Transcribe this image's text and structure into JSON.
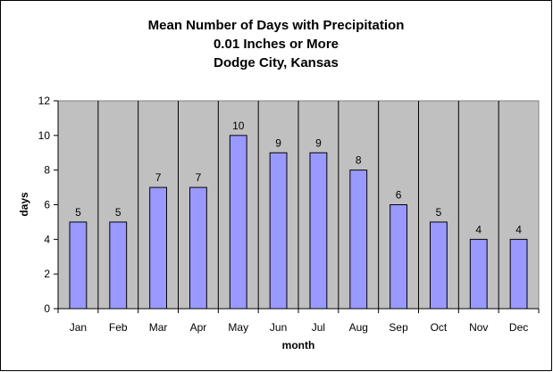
{
  "chart_data": {
    "type": "bar",
    "title_lines": [
      "Mean Number of Days with Precipitation",
      "0.01 Inches or More",
      "Dodge City, Kansas"
    ],
    "xlabel": "month",
    "ylabel": "days",
    "categories": [
      "Jan",
      "Feb",
      "Mar",
      "Apr",
      "May",
      "Jun",
      "Jul",
      "Aug",
      "Sep",
      "Oct",
      "Nov",
      "Dec"
    ],
    "values": [
      5,
      5,
      7,
      7,
      10,
      9,
      9,
      8,
      6,
      5,
      4,
      4
    ],
    "ylim": [
      0,
      12
    ],
    "yticks": [
      0,
      2,
      4,
      6,
      8,
      10,
      12
    ],
    "data_labels": true,
    "grid": "vertical category separators",
    "colors": {
      "bar_fill": "#9999FF",
      "plot_background": "#C0C0C0",
      "page_background": "#FFFFFF",
      "outline": "#000000"
    }
  }
}
